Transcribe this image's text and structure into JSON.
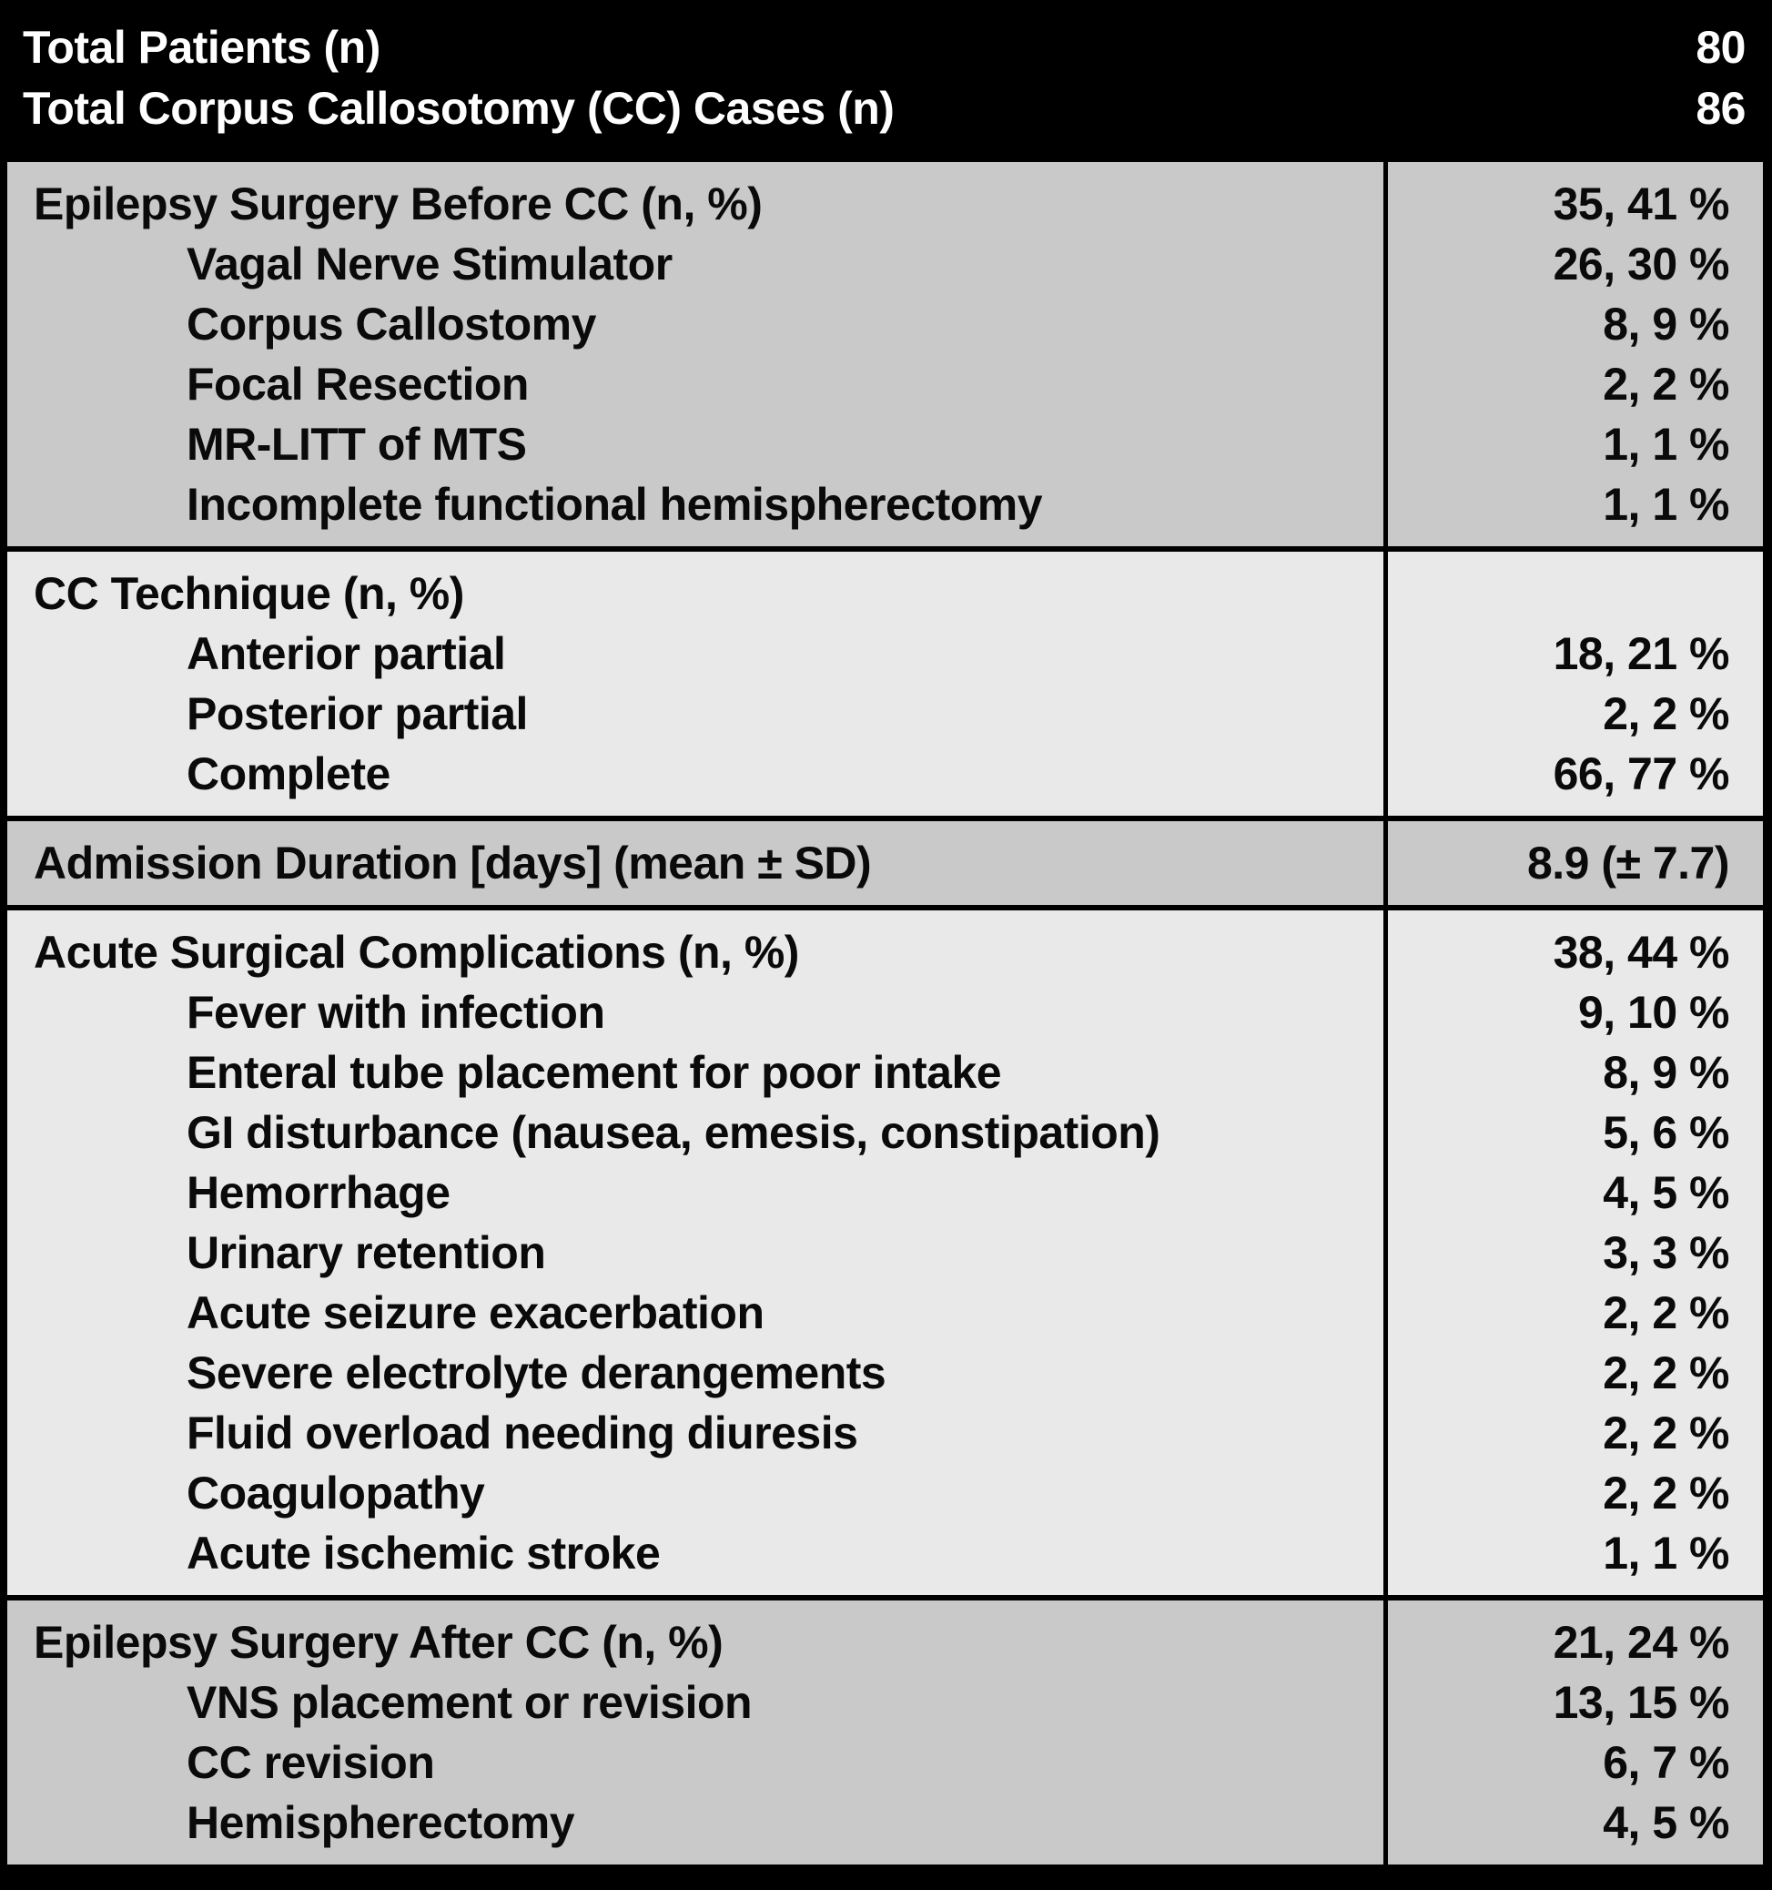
{
  "table_title": "Corpus Callosotomy cohort summary table",
  "colors": {
    "header_background": "#000000",
    "header_text": "#ffffff",
    "section_medium_gray": "#c9c9c9",
    "section_light_gray": "#e9e9e9",
    "body_text": "#0a0a0a",
    "rule_black": "#000000"
  },
  "header": {
    "rows": [
      {
        "label": "Total Patients (n)",
        "value": "80"
      },
      {
        "label": "Total Corpus Callosotomy (CC) Cases (n)",
        "value": "86"
      }
    ]
  },
  "sections": [
    {
      "tone": "medium",
      "rows": [
        {
          "indent": false,
          "label": "Epilepsy Surgery Before CC (n, %)",
          "value": "35, 41 %"
        },
        {
          "indent": true,
          "label": "Vagal Nerve Stimulator",
          "value": "26, 30 %"
        },
        {
          "indent": true,
          "label": "Corpus Callostomy",
          "value": "8, 9 %"
        },
        {
          "indent": true,
          "label": "Focal Resection",
          "value": "2, 2 %"
        },
        {
          "indent": true,
          "label": "MR-LITT of MTS",
          "value": "1, 1 %"
        },
        {
          "indent": true,
          "label": "Incomplete functional hemispherectomy",
          "value": "1, 1 %"
        }
      ]
    },
    {
      "tone": "light",
      "rows": [
        {
          "indent": false,
          "label": "CC Technique (n, %)",
          "value": ""
        },
        {
          "indent": true,
          "label": "Anterior partial",
          "value": "18, 21 %"
        },
        {
          "indent": true,
          "label": "Posterior partial",
          "value": "2, 2 %"
        },
        {
          "indent": true,
          "label": "Complete",
          "value": "66, 77 %"
        }
      ]
    },
    {
      "tone": "medium",
      "rows": [
        {
          "indent": false,
          "label": "Admission Duration [days] (mean ± SD)",
          "value": "8.9 (± 7.7)"
        }
      ]
    },
    {
      "tone": "light",
      "rows": [
        {
          "indent": false,
          "label": "Acute Surgical Complications (n, %)",
          "value": "38, 44 %"
        },
        {
          "indent": true,
          "label": "Fever with infection",
          "value": "9, 10 %"
        },
        {
          "indent": true,
          "label": "Enteral tube placement for poor intake",
          "value": "8, 9 %"
        },
        {
          "indent": true,
          "label": "GI disturbance (nausea, emesis, constipation)",
          "value": "5, 6 %"
        },
        {
          "indent": true,
          "label": "Hemorrhage",
          "value": "4, 5 %"
        },
        {
          "indent": true,
          "label": "Urinary retention",
          "value": "3, 3 %"
        },
        {
          "indent": true,
          "label": "Acute seizure exacerbation",
          "value": "2, 2 %"
        },
        {
          "indent": true,
          "label": "Severe electrolyte derangements",
          "value": "2, 2 %"
        },
        {
          "indent": true,
          "label": "Fluid overload needing diuresis",
          "value": "2, 2 %"
        },
        {
          "indent": true,
          "label": "Coagulopathy",
          "value": "2, 2 %"
        },
        {
          "indent": true,
          "label": "Acute ischemic stroke",
          "value": "1, 1 %"
        }
      ]
    },
    {
      "tone": "medium",
      "rows": [
        {
          "indent": false,
          "label": "Epilepsy Surgery After CC (n, %)",
          "value": "21, 24 %"
        },
        {
          "indent": true,
          "label": "VNS placement or revision",
          "value": "13, 15 %"
        },
        {
          "indent": true,
          "label": "CC revision",
          "value": "6, 7 %"
        },
        {
          "indent": true,
          "label": "Hemispherectomy",
          "value": "4, 5 %"
        }
      ]
    }
  ]
}
